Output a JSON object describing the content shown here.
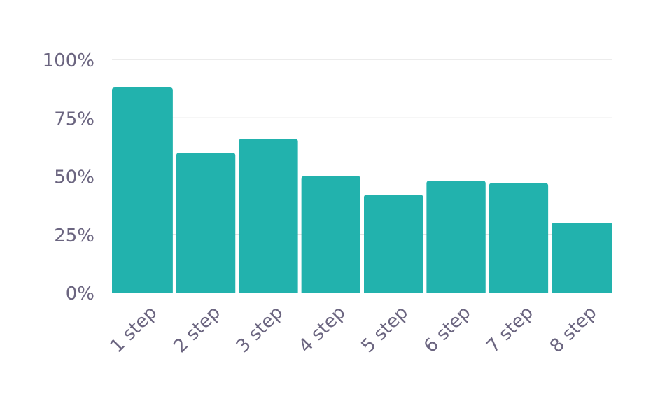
{
  "chart_data": {
    "type": "bar",
    "categories": [
      "1 step",
      "2 step",
      "3 step",
      "4 step",
      "5 step",
      "6 step",
      "7 step",
      "8 step"
    ],
    "values": [
      88,
      60,
      66,
      50,
      42,
      48,
      47,
      30
    ],
    "y_ticks": [
      "0%",
      "25%",
      "50%",
      "75%",
      "100%"
    ],
    "ylim": [
      0,
      100
    ],
    "grid": true,
    "bar_color": "#22b2ad",
    "axis_text_color": "#6b6580",
    "grid_color": "#d9d9d9"
  }
}
